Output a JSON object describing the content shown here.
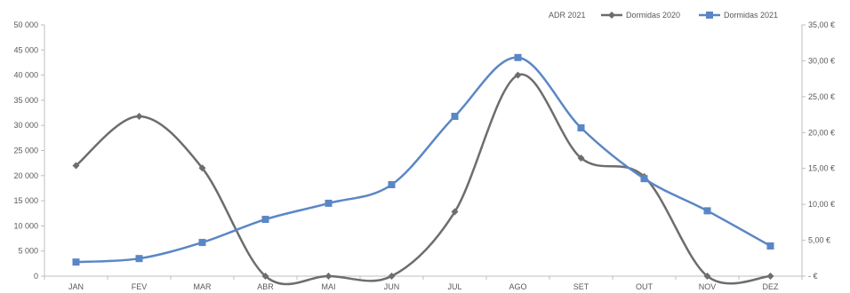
{
  "chart_data": {
    "type": "line",
    "categories": [
      "JAN",
      "FEV",
      "MAR",
      "ABR",
      "MAI",
      "JUN",
      "JUL",
      "AGO",
      "SET",
      "OUT",
      "NOV",
      "DEZ"
    ],
    "series": [
      {
        "name": "Dormidas 2020",
        "axis": "left",
        "color": "#6d6d6d",
        "marker": "diamond",
        "values": [
          22000,
          31800,
          21500,
          0,
          0,
          0,
          12800,
          40000,
          23500,
          19800,
          0,
          0
        ]
      },
      {
        "name": "Dormidas 2021",
        "axis": "left",
        "color": "#5b86c5",
        "marker": "square",
        "values": [
          2800,
          3500,
          6700,
          11300,
          14500,
          18200,
          31800,
          43500,
          29500,
          19400,
          13000,
          6000
        ]
      }
    ],
    "legend_entries": [
      "ADR 2021",
      "Dormidas 2020",
      "Dormidas 2021"
    ],
    "legend_position": "top-right",
    "y_left": {
      "range": [
        0,
        50000
      ],
      "ticks": [
        "0",
        "5000",
        "10000",
        "15000",
        "20000",
        "25000",
        "30000",
        "35000",
        "40000",
        "45000",
        "50000"
      ],
      "tick_labels": [
        "0",
        "5 000",
        "10 000",
        "15 000",
        "20 000",
        "25 000",
        "30 000",
        "35 000",
        "40 000",
        "45 000",
        "50 000"
      ]
    },
    "y_right": {
      "range": [
        0,
        35
      ],
      "tick_labels": [
        "-  €",
        "5,00 €",
        "10,00 €",
        "15,00 €",
        "20,00 €",
        "25,00 €",
        "30,00 €",
        "35,00 €"
      ]
    },
    "grid": false
  }
}
